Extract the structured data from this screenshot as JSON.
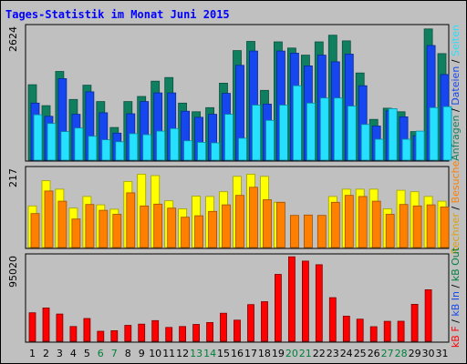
{
  "page_title": "Tages-Statistik im Monat Juni 2015",
  "colors": {
    "background": "#c0c0c0",
    "panel": "#c0c0c0",
    "anfragen": "#0f7f5f",
    "dateien": "#1546f0",
    "seiten": "#26e0ff",
    "rechner": "#ffff00",
    "besuche": "#ff8000",
    "kbf": "#ff0000",
    "weekend_label": "#00803c"
  },
  "chart_data": [
    {
      "type": "bar",
      "title": "Tages-Statistik im Monat Juni 2015",
      "ymax_label": "2624",
      "ylim": [
        0,
        2624
      ],
      "categories": [
        "1",
        "2",
        "3",
        "4",
        "5",
        "6",
        "7",
        "8",
        "9",
        "10",
        "11",
        "12",
        "13",
        "14",
        "15",
        "16",
        "17",
        "18",
        "19",
        "20",
        "21",
        "22",
        "23",
        "24",
        "25",
        "26",
        "27",
        "28",
        "29",
        "30",
        "31"
      ],
      "weekend_days": [
        "6",
        "7",
        "13",
        "14",
        "20",
        "21",
        "27",
        "28"
      ],
      "series": [
        {
          "name": "Anfragen",
          "values": [
            1480,
            1070,
            1740,
            1190,
            1470,
            1150,
            640,
            1150,
            1250,
            1550,
            1620,
            1120,
            950,
            1030,
            1510,
            2150,
            2330,
            1370,
            2320,
            2200,
            2060,
            2320,
            2450,
            2340,
            1710,
            800,
            1020,
            950,
            560,
            2574,
            2090
          ]
        },
        {
          "name": "Dateien",
          "values": [
            1120,
            860,
            1600,
            900,
            1340,
            930,
            530,
            910,
            1150,
            1320,
            1320,
            960,
            840,
            900,
            1310,
            1860,
            2140,
            1100,
            2140,
            2100,
            1850,
            2060,
            1930,
            2080,
            1460,
            670,
            970,
            850,
            480,
            2250,
            1680
          ]
        },
        {
          "name": "Seiten",
          "values": [
            890,
            720,
            560,
            630,
            470,
            400,
            360,
            520,
            500,
            570,
            620,
            380,
            350,
            340,
            900,
            430,
            1080,
            780,
            1080,
            1460,
            1120,
            1220,
            1220,
            1060,
            700,
            410,
            1010,
            410,
            570,
            1030,
            1050
          ]
        }
      ]
    },
    {
      "type": "bar",
      "ymax_label": "217",
      "ylim": [
        0,
        217
      ],
      "categories": [
        "1",
        "2",
        "3",
        "4",
        "5",
        "6",
        "7",
        "8",
        "9",
        "10",
        "11",
        "12",
        "13",
        "14",
        "15",
        "16",
        "17",
        "18",
        "19",
        "20",
        "21",
        "22",
        "23",
        "24",
        "25",
        "26",
        "27",
        "28",
        "29",
        "30",
        "31"
      ],
      "series": [
        {
          "name": "Rechner",
          "values": [
            114,
            183,
            160,
            108,
            140,
            117,
            105,
            181,
            201,
            197,
            128,
            106,
            141,
            140,
            153,
            195,
            201,
            195,
            124,
            0,
            0,
            0,
            140,
            160,
            160,
            160,
            106,
            157,
            153,
            140,
            127
          ]
        },
        {
          "name": "Besuche",
          "values": [
            93,
            155,
            127,
            78,
            118,
            102,
            91,
            150,
            114,
            119,
            108,
            83,
            87,
            99,
            117,
            143,
            165,
            131,
            124,
            88,
            89,
            88,
            124,
            143,
            140,
            127,
            91,
            118,
            114,
            117,
            111
          ]
        }
      ]
    },
    {
      "type": "bar",
      "ymax_label": "95020",
      "ylim": [
        0,
        95020
      ],
      "categories": [
        "1",
        "2",
        "3",
        "4",
        "5",
        "6",
        "7",
        "8",
        "9",
        "10",
        "11",
        "12",
        "13",
        "14",
        "15",
        "16",
        "17",
        "18",
        "19",
        "20",
        "21",
        "22",
        "23",
        "24",
        "25",
        "26",
        "27",
        "28",
        "29",
        "30",
        "31"
      ],
      "series": [
        {
          "name": "kB F",
          "values": [
            31600,
            37000,
            30200,
            16400,
            25300,
            11100,
            11700,
            17700,
            19000,
            22900,
            15400,
            16400,
            18700,
            20800,
            31100,
            23500,
            40700,
            44000,
            74300,
            93800,
            89100,
            85000,
            48400,
            27900,
            24600,
            16200,
            22100,
            22200,
            41000,
            57200,
            0
          ]
        }
      ]
    }
  ],
  "legend_right": {
    "top": [
      {
        "text": "Anfragen",
        "color": "#0f7f5f"
      },
      {
        "text": " / ",
        "color": "#000000"
      },
      {
        "text": "Dateien",
        "color": "#1546f0"
      },
      {
        "text": " / ",
        "color": "#000000"
      },
      {
        "text": "Seiten",
        "color": "#26e0ff"
      }
    ],
    "mid": [
      {
        "text": "Rechner",
        "color": "#e0a000"
      },
      {
        "text": " / ",
        "color": "#000000"
      },
      {
        "text": "Besuche",
        "color": "#ff8000"
      }
    ],
    "bottom": [
      {
        "text": "kB F",
        "color": "#ff0000"
      },
      {
        "text": " / ",
        "color": "#000000"
      },
      {
        "text": "kB In",
        "color": "#1546f0"
      },
      {
        "text": " / ",
        "color": "#000000"
      },
      {
        "text": "kB Out",
        "color": "#00803c"
      }
    ]
  }
}
